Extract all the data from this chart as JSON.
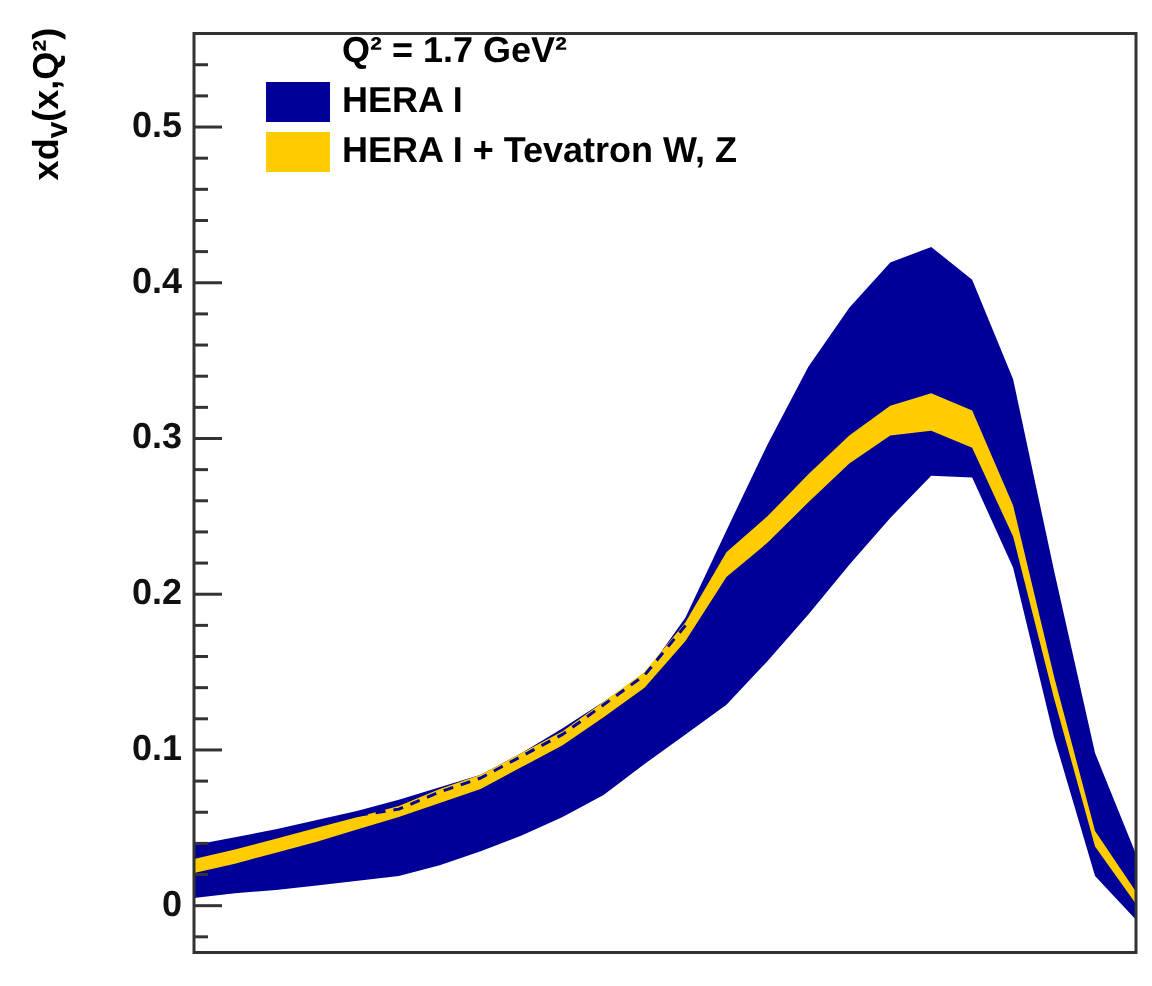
{
  "chart_data": {
    "type": "line",
    "ylabel": "xd$_{v}$(x,Q²)",
    "legend_title": "Q² = 1.7 GeV²",
    "legend": "top left",
    "grid": false,
    "tick_labels": "y",
    "categories": [
      null,
      null,
      null,
      null,
      null,
      null,
      null,
      null,
      null,
      null,
      null,
      null,
      null,
      null,
      null,
      null,
      null,
      null,
      null,
      null,
      null,
      null,
      null,
      null
    ],
    "ylim": [
      -0.03,
      0.56
    ],
    "yticks": [
      {
        "value": -0.02,
        "label": null
      },
      0,
      {
        "value": 0.02,
        "label": null
      },
      {
        "value": 0.04,
        "label": null
      },
      {
        "value": 0.06,
        "label": null
      },
      {
        "value": 0.08,
        "label": null
      },
      0.1,
      {
        "value": 0.12,
        "label": null
      },
      {
        "value": 0.14,
        "label": null
      },
      {
        "value": 0.16,
        "label": null
      },
      {
        "value": 0.18,
        "label": null
      },
      0.2,
      {
        "value": 0.22,
        "label": null
      },
      {
        "value": 0.24,
        "label": null
      },
      {
        "value": 0.26,
        "label": null
      },
      {
        "value": 0.28,
        "label": null
      },
      0.3,
      {
        "value": 0.32,
        "label": null
      },
      {
        "value": 0.34,
        "label": null
      },
      {
        "value": 0.36,
        "label": null
      },
      {
        "value": 0.38,
        "label": null
      },
      0.4,
      {
        "value": 0.42,
        "label": null
      },
      {
        "value": 0.44,
        "label": null
      },
      {
        "value": 0.46,
        "label": null
      },
      {
        "value": 0.48,
        "label": null
      },
      0.5,
      {
        "value": 0.52,
        "label": null
      },
      {
        "value": 0.54,
        "label": null
      }
    ],
    "series": [
      {
        "name": "HERA I",
        "color": "#000099",
        "line_style": "dashed",
        "values": [
          null,
          null,
          null,
          null,
          0.058,
          0.062,
          0.073,
          0.082,
          0.096,
          0.11,
          0.129,
          0.148,
          0.18,
          null,
          null,
          null,
          null,
          null,
          null,
          null,
          null,
          null,
          null,
          null
        ],
        "lower": [
          0.005,
          0.008,
          0.01,
          0.013,
          0.016,
          0.019,
          0.026,
          0.035,
          0.045,
          0.057,
          0.071,
          0.091,
          0.11,
          0.129,
          0.157,
          0.187,
          0.219,
          0.249,
          0.276,
          0.275,
          0.217,
          0.108,
          0.019,
          -0.009
        ],
        "upper": [
          0.039,
          0.044,
          0.049,
          0.055,
          0.061,
          0.068,
          0.076,
          0.084,
          0.098,
          0.114,
          0.131,
          0.148,
          0.185,
          0.241,
          0.296,
          0.346,
          0.384,
          0.413,
          0.423,
          0.402,
          0.338,
          0.215,
          0.098,
          0.033
        ]
      },
      {
        "name": "HERA I + Tevatron W, Z",
        "color": "#ffcc00",
        "values": [
          null,
          null,
          null,
          null,
          null,
          null,
          null,
          null,
          null,
          null,
          null,
          null,
          null,
          null,
          null,
          null,
          null,
          null,
          null,
          null,
          null,
          null,
          null,
          null
        ],
        "lower": [
          0.021,
          0.027,
          0.034,
          0.041,
          0.049,
          0.057,
          0.066,
          0.075,
          0.089,
          0.103,
          0.121,
          0.14,
          0.17,
          0.211,
          0.233,
          0.259,
          0.284,
          0.302,
          0.305,
          0.294,
          0.237,
          0.133,
          0.038,
          0.001
        ],
        "upper": [
          0.03,
          0.036,
          0.043,
          0.05,
          0.057,
          0.064,
          0.075,
          0.084,
          0.098,
          0.112,
          0.131,
          0.15,
          0.182,
          0.227,
          0.25,
          0.277,
          0.302,
          0.321,
          0.329,
          0.318,
          0.257,
          0.147,
          0.048,
          0.009
        ]
      }
    ]
  }
}
